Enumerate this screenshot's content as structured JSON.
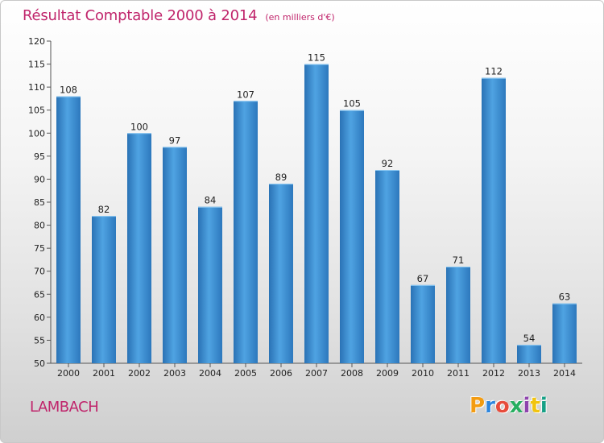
{
  "chart_data": {
    "type": "bar",
    "title": "Résultat Comptable 2000 à 2014",
    "subtitle": "(en milliers d'€)",
    "categories": [
      "2000",
      "2001",
      "2002",
      "2003",
      "2004",
      "2005",
      "2006",
      "2007",
      "2008",
      "2009",
      "2010",
      "2011",
      "2012",
      "2013",
      "2014"
    ],
    "values": [
      108,
      82,
      100,
      97,
      84,
      107,
      89,
      115,
      105,
      92,
      67,
      71,
      112,
      54,
      63
    ],
    "ylim": [
      50,
      120
    ],
    "yticks": [
      50,
      55,
      60,
      65,
      70,
      75,
      80,
      85,
      90,
      95,
      100,
      105,
      110,
      115,
      120
    ],
    "grid": false,
    "bar_color": "#3a86c8",
    "bar_highlight": "#62b3ea"
  },
  "footer": {
    "commune": "LAMBACH",
    "brand": "Proxiti"
  },
  "colors": {
    "title": "#c0246b",
    "brand_letters": [
      "#f39c12",
      "#2e86de",
      "#e74c3c",
      "#27ae60",
      "#8e44ad",
      "#f1c40f",
      "#16a085"
    ]
  }
}
